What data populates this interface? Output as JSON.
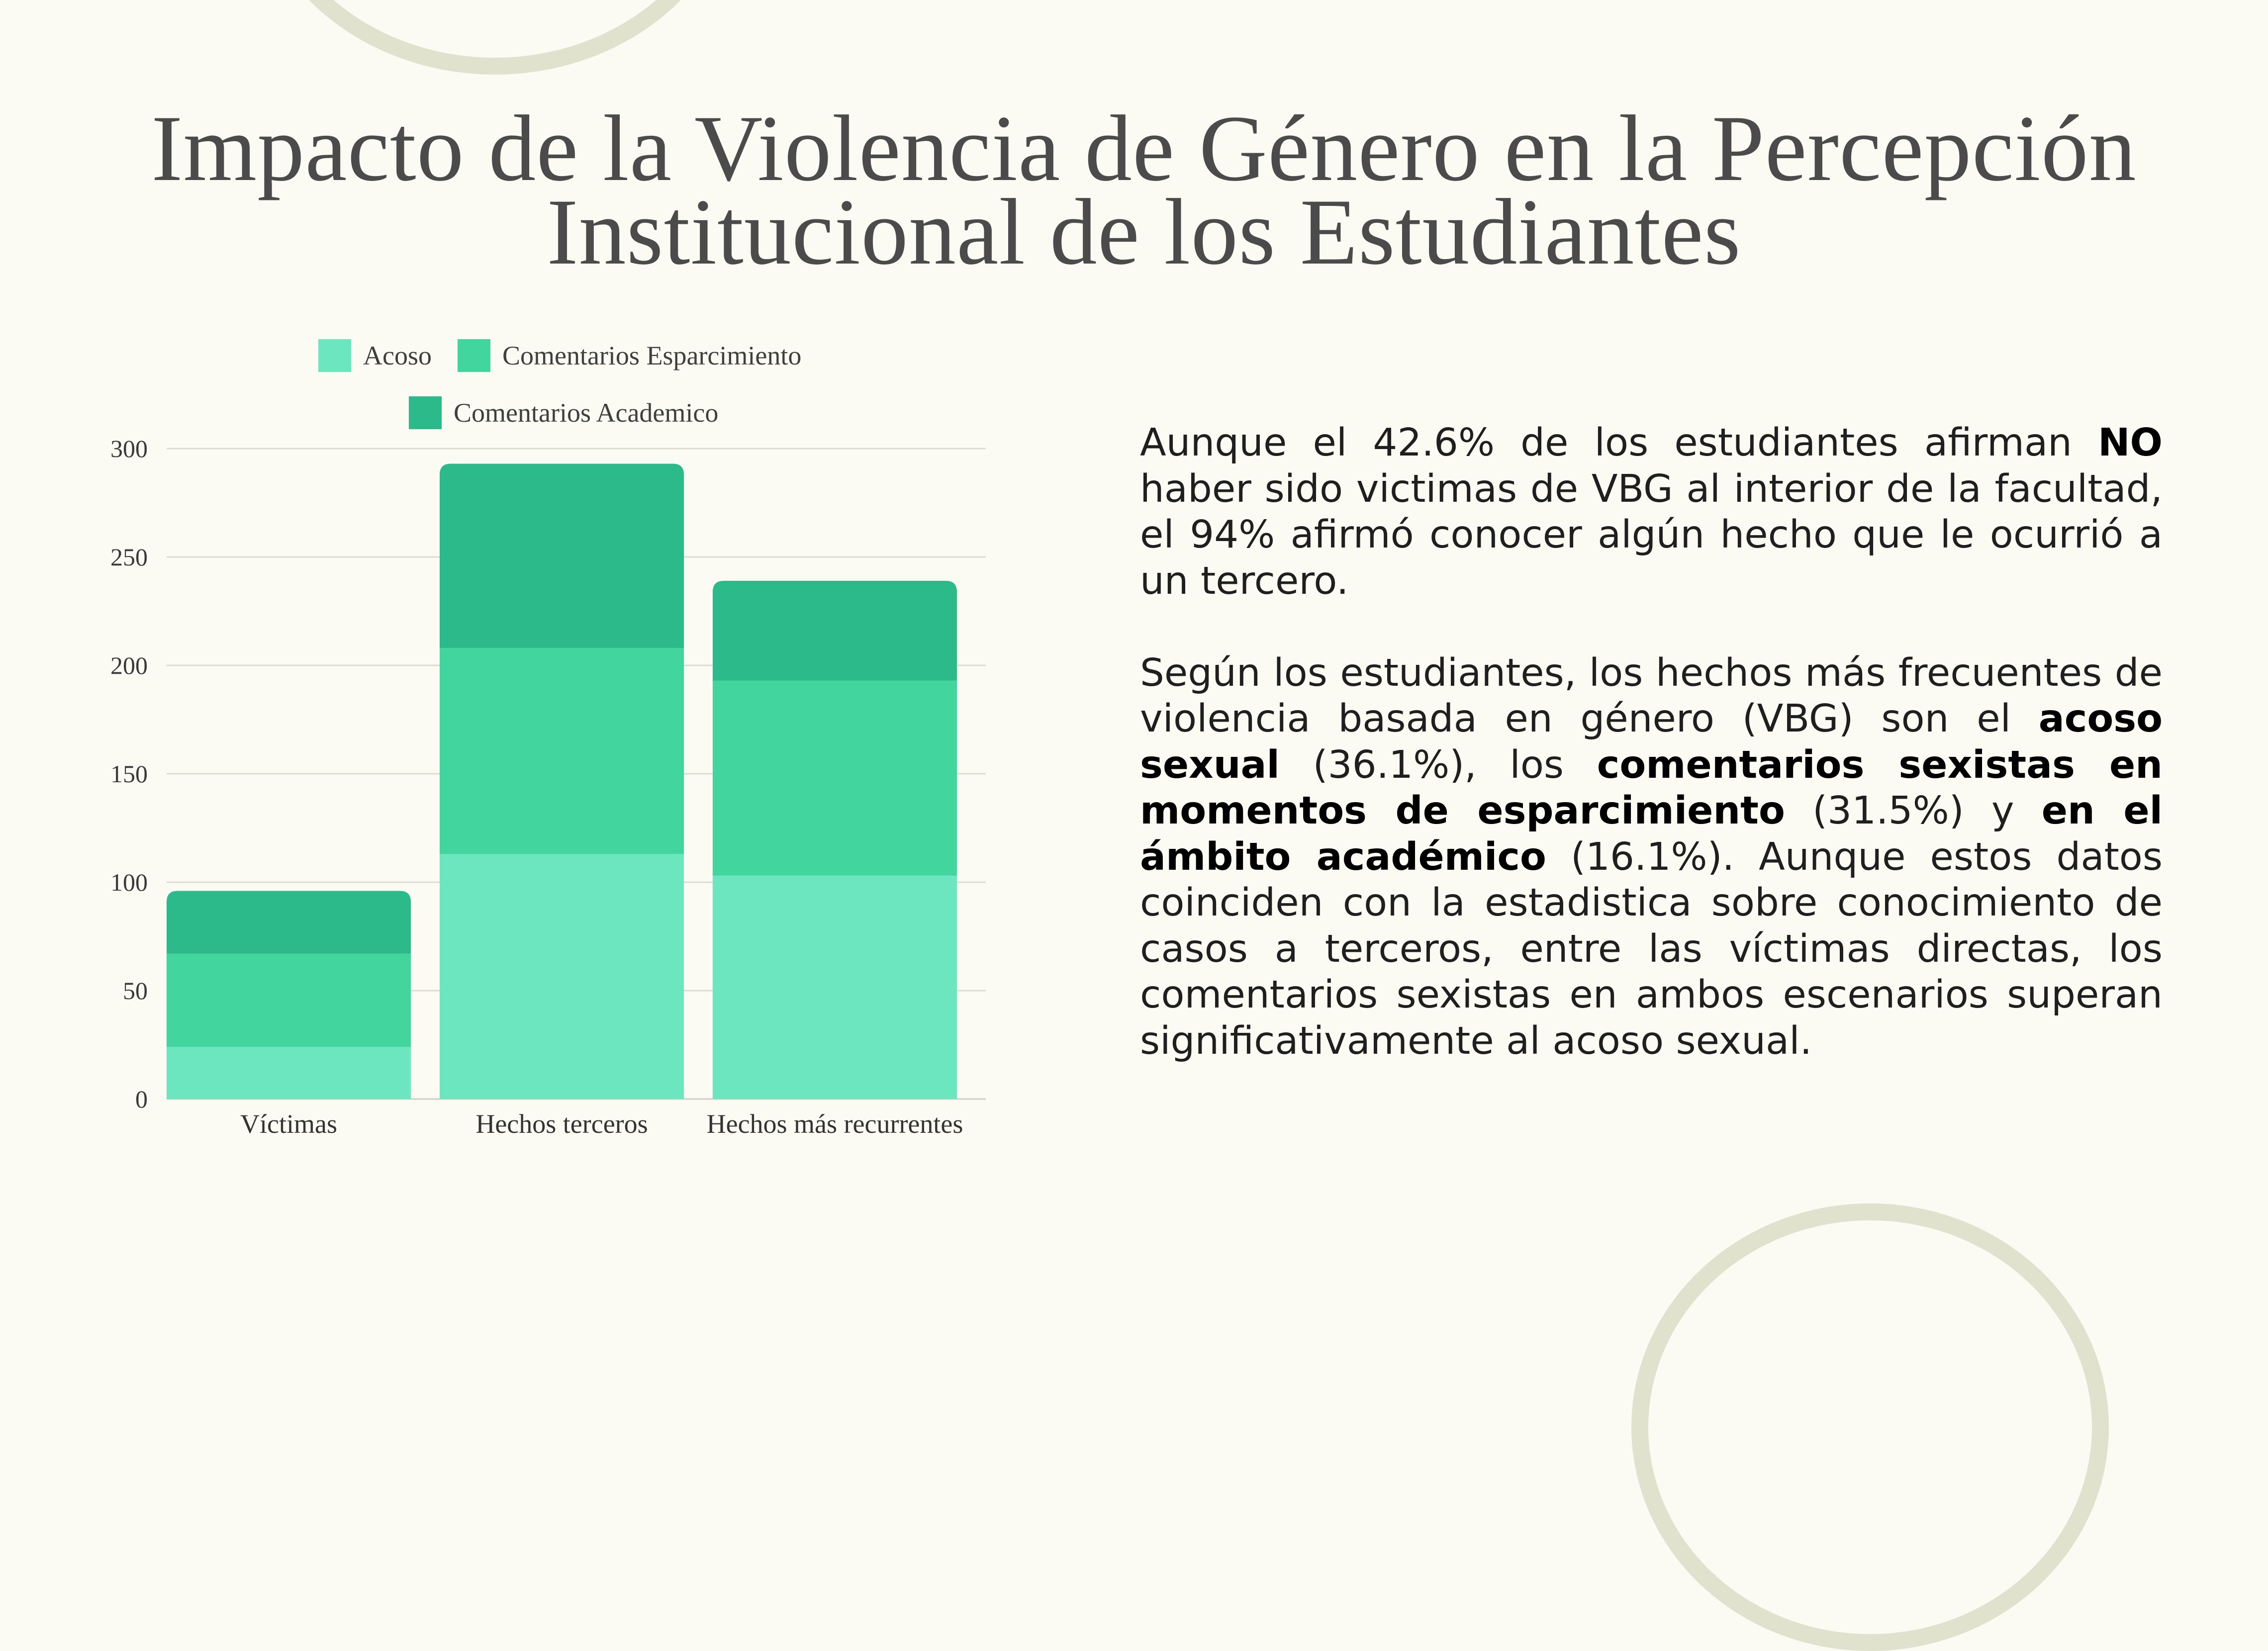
{
  "title": {
    "line1": "Impacto de la Violencia de Género en la Percepción",
    "line2": "Institucional de los Estudiantes"
  },
  "chart_data": {
    "type": "bar",
    "stacked": true,
    "categories": [
      "Víctimas",
      "Hechos terceros",
      "Hechos más recurrentes"
    ],
    "series": [
      {
        "name": "Acoso",
        "color": "#6ce6be",
        "values": [
          24,
          113,
          103
        ]
      },
      {
        "name": "Comentarios Esparcimiento",
        "color": "#42d69e",
        "values": [
          43,
          95,
          90
        ]
      },
      {
        "name": "Comentarios Academico",
        "color": "#2dba8a",
        "values": [
          29,
          85,
          46
        ]
      }
    ],
    "ylim": [
      0,
      300
    ],
    "yticks": [
      0,
      50,
      100,
      150,
      200,
      250,
      300
    ],
    "grid": true,
    "legend_position": "top"
  },
  "text": {
    "p1": [
      {
        "t": "Aunque el 42.6% de los estudiantes afirman ",
        "b": false
      },
      {
        "t": "NO",
        "b": true
      },
      {
        "t": " haber sido victimas de VBG al interior de la facultad, el 94% afirmó conocer algún hecho que le ocurrió a un tercero.",
        "b": false
      }
    ],
    "p2": [
      {
        "t": "Según los estudiantes, los hechos más frecuentes de violencia basada en género (VBG) son el ",
        "b": false
      },
      {
        "t": "acoso sexual",
        "b": true
      },
      {
        "t": " (36.1%), los ",
        "b": false
      },
      {
        "t": "comentarios sexistas en momentos de esparcimiento",
        "b": true
      },
      {
        "t": " (31.5%) y ",
        "b": false
      },
      {
        "t": "en el ámbito académico",
        "b": true
      },
      {
        "t": " (16.1%). Aunque estos datos coinciden con la estadistica sobre conocimiento de casos a terceros, entre las víctimas directas, los comentarios sexistas en ambos escenarios superan significativamente al acoso sexual.",
        "b": false
      }
    ]
  }
}
